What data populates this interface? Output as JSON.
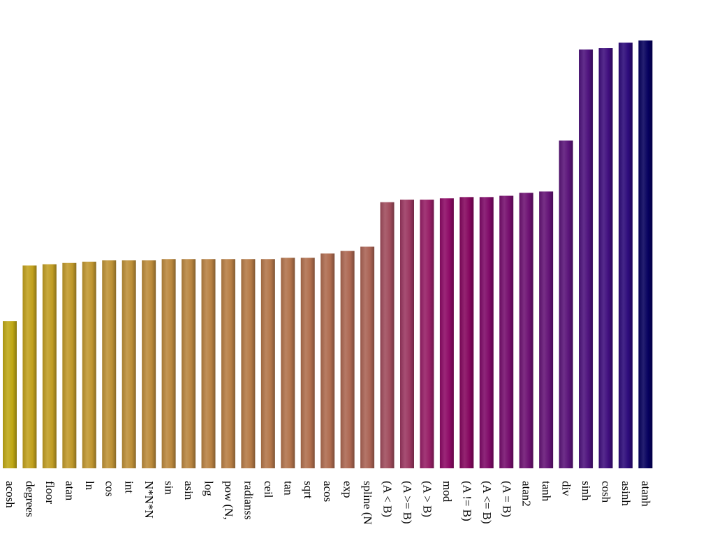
{
  "chart_data": {
    "type": "bar",
    "title": "",
    "xlabel": "",
    "ylabel": "",
    "ylim": [
      0,
      1000
    ],
    "grid": false,
    "legend": "none",
    "label_orientation": "vertical",
    "categories": [
      "acosh",
      "degrees",
      "floor",
      "atan",
      "ln",
      "cos",
      "int",
      "N*N*N",
      "sin",
      "asin",
      "log",
      "pow (N,",
      "radianss",
      "ceil",
      "tan",
      "sqrt",
      "acos",
      "exp",
      "spline (N",
      "(A < B)",
      "(A >= B)",
      "(A > B)",
      "mod",
      "(A != B)",
      "(A <= B)",
      "(A = B)",
      "atan2",
      "tanh",
      "div",
      "sinh",
      "cosh",
      "asinh",
      "atanh"
    ],
    "values": [
      344,
      474,
      477,
      480,
      483,
      486,
      486,
      486,
      489,
      489,
      489,
      489,
      489,
      489,
      492,
      492,
      502,
      508,
      518,
      622,
      628,
      628,
      631,
      634,
      634,
      637,
      644,
      647,
      766,
      979,
      982,
      995,
      1000
    ],
    "colors": [
      "#bfa814",
      "#c2a11d",
      "#c19d24",
      "#c0992b",
      "#c09630",
      "#be9235",
      "#bd8f37",
      "#bc8b3a",
      "#bb883d",
      "#b9853f",
      "#b88142",
      "#b77e44",
      "#b57a46",
      "#b37649",
      "#b2734b",
      "#b06f4d",
      "#ae6b4f",
      "#ac6751",
      "#aa6354",
      "#a04c5c",
      "#9b3761",
      "#961e66",
      "#8d0a66",
      "#85075f",
      "#7f0a68",
      "#760e6d",
      "#6d1172",
      "#641376",
      "#5a1479",
      "#4d127c",
      "#3f0e7d",
      "#2c0a7a",
      "#06005e"
    ]
  }
}
